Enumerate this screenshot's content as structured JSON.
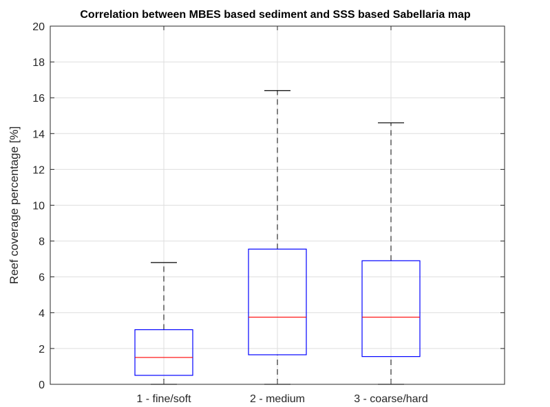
{
  "chart_data": {
    "type": "box",
    "title": "Correlation between MBES based sediment and SSS based Sabellaria map",
    "xlabel": "",
    "ylabel": "Reef coverage percentage [%]",
    "ylim": [
      0,
      20
    ],
    "yticks": [
      0,
      2,
      4,
      6,
      8,
      10,
      12,
      14,
      16,
      18,
      20
    ],
    "grid": true,
    "categories": [
      "1 - fine/soft",
      "2 - medium",
      "3 - coarse/hard"
    ],
    "boxes": [
      {
        "whisker_low": 0,
        "q1": 0.5,
        "median": 1.5,
        "q3": 3.05,
        "whisker_high": 6.8
      },
      {
        "whisker_low": 0,
        "q1": 1.65,
        "median": 3.75,
        "q3": 7.55,
        "whisker_high": 16.4
      },
      {
        "whisker_low": 0,
        "q1": 1.55,
        "median": 3.75,
        "q3": 6.9,
        "whisker_high": 14.6
      }
    ],
    "colors": {
      "box": "#0000ff",
      "median": "#ff0000",
      "whisker": "#000000",
      "grid": "#dedede",
      "axis": "#262626"
    }
  }
}
